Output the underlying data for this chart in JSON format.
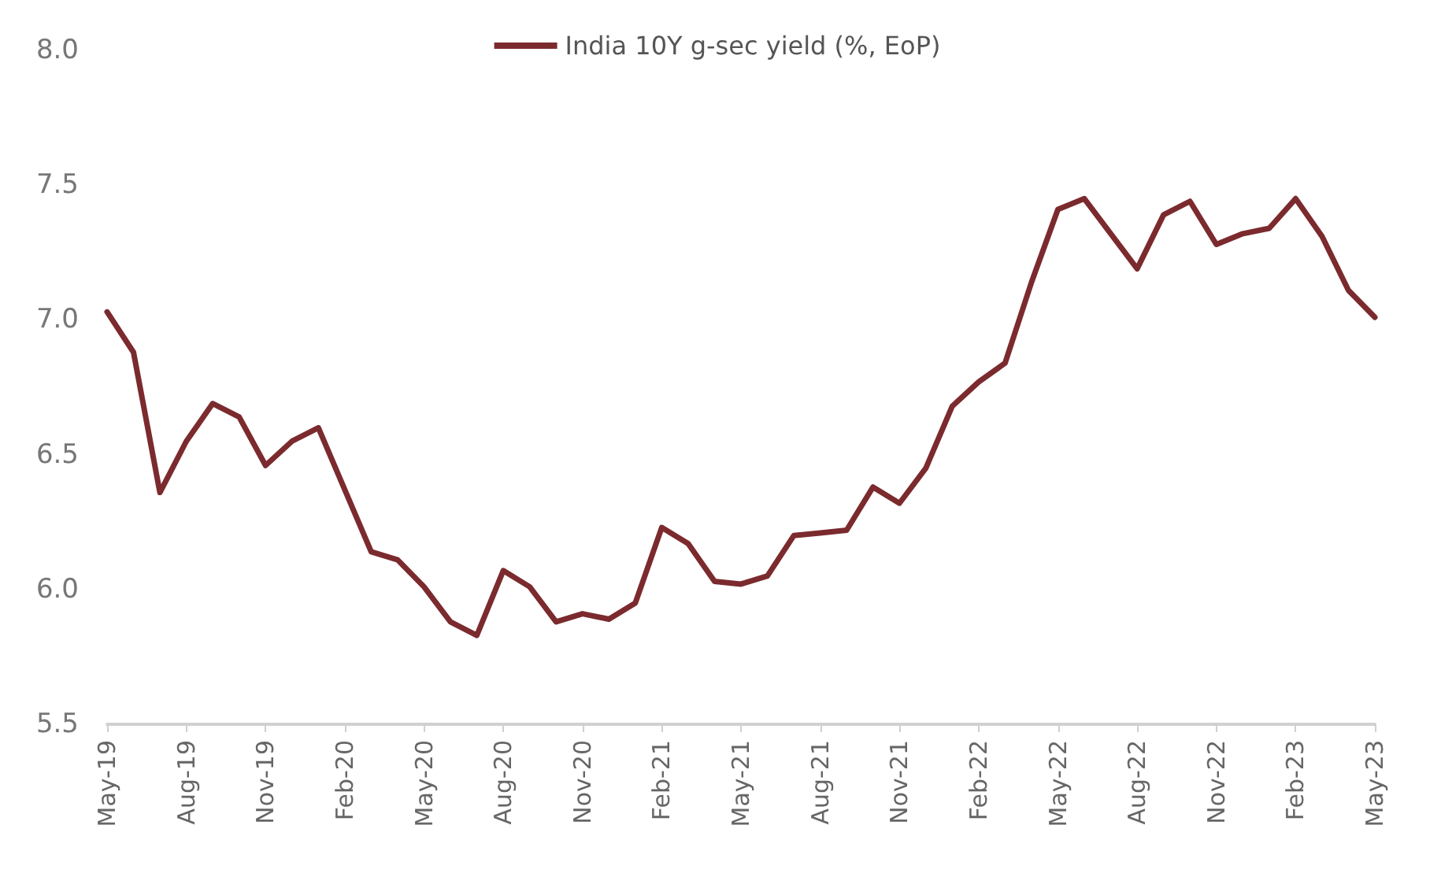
{
  "chart_data": {
    "type": "line",
    "categories": [
      "May-19",
      null,
      null,
      "Aug-19",
      null,
      null,
      "Nov-19",
      null,
      null,
      "Feb-20",
      null,
      null,
      "May-20",
      null,
      null,
      "Aug-20",
      null,
      null,
      "Nov-20",
      null,
      null,
      "Feb-21",
      null,
      null,
      "May-21",
      null,
      null,
      "Aug-21",
      null,
      null,
      "Nov-21",
      null,
      null,
      "Feb-22",
      null,
      null,
      "May-22",
      null,
      null,
      "Aug-22",
      null,
      null,
      "Nov-22",
      null,
      null,
      "Feb-23",
      null,
      null,
      "May-23"
    ],
    "series": [
      {
        "name": "India 10Y g-sec yield (%, EoP)",
        "color": "#7b2a2e",
        "values": [
          7.03,
          6.88,
          6.36,
          6.55,
          6.69,
          6.64,
          6.46,
          6.55,
          6.6,
          6.37,
          6.14,
          6.11,
          6.01,
          5.88,
          5.83,
          6.07,
          6.01,
          5.88,
          5.91,
          5.89,
          5.95,
          6.23,
          6.17,
          6.03,
          6.02,
          6.05,
          6.2,
          6.21,
          6.22,
          6.38,
          6.32,
          6.45,
          6.68,
          6.77,
          6.84,
          7.14,
          7.41,
          7.45,
          7.32,
          7.19,
          7.39,
          7.44,
          7.28,
          7.32,
          7.34,
          7.45,
          7.31,
          7.11,
          7.01
        ]
      }
    ],
    "ylim": [
      5.5,
      8.0
    ],
    "yticks": [
      {
        "value": 5.5,
        "label": "5.5"
      },
      {
        "value": 6,
        "label": "6.0"
      },
      {
        "value": 6.5,
        "label": "6.5"
      },
      {
        "value": 7,
        "label": "7.0"
      },
      {
        "value": 7.5,
        "label": "7.5"
      },
      {
        "value": 8,
        "label": "8.0"
      }
    ],
    "grid": false,
    "legend": "top",
    "marker": "none",
    "line_style": "solid"
  }
}
